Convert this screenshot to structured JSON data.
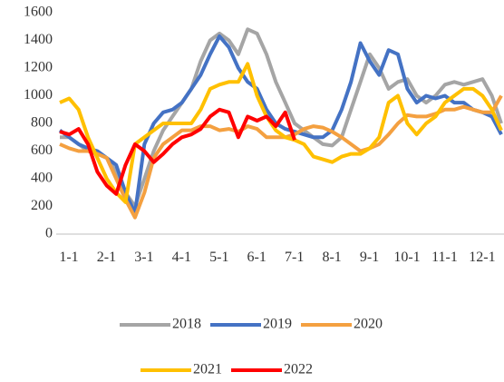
{
  "chart_data": {
    "type": "line",
    "categories": [
      "1-1",
      null,
      null,
      null,
      "2-1",
      null,
      null,
      null,
      "3-1",
      null,
      null,
      null,
      "4-1",
      null,
      null,
      null,
      "5-1",
      null,
      null,
      null,
      "6-1",
      null,
      null,
      null,
      "7-1",
      null,
      null,
      null,
      "8-1",
      null,
      null,
      null,
      "9-1",
      null,
      null,
      null,
      "10-1",
      null,
      null,
      null,
      "11-1",
      null,
      null,
      null,
      "12-1",
      null,
      null,
      null
    ],
    "series": [
      {
        "name": "2018",
        "color": "#a5a5a5",
        "values": [
          700,
          700,
          650,
          600,
          580,
          550,
          450,
          300,
          200,
          400,
          600,
          750,
          850,
          950,
          1050,
          1250,
          1400,
          1450,
          1400,
          1300,
          1480,
          1450,
          1300,
          1100,
          950,
          800,
          750,
          700,
          650,
          640,
          700,
          900,
          1100,
          1300,
          1200,
          1050,
          1100,
          1120,
          1000,
          950,
          1000,
          1080,
          1100,
          1080,
          1100,
          1120,
          1000,
          800
        ]
      },
      {
        "name": "2019",
        "color": "#4472c4",
        "values": [
          750,
          700,
          650,
          620,
          600,
          550,
          500,
          300,
          150,
          650,
          800,
          880,
          900,
          950,
          1050,
          1150,
          1300,
          1430,
          1350,
          1200,
          1100,
          1050,
          900,
          800,
          760,
          740,
          720,
          700,
          700,
          750,
          900,
          1100,
          1380,
          1250,
          1150,
          1330,
          1300,
          1050,
          950,
          1000,
          980,
          1000,
          950,
          950,
          900,
          880,
          850,
          720
        ]
      },
      {
        "name": "2020",
        "color": "#f4a040",
        "values": [
          650,
          620,
          600,
          600,
          580,
          550,
          400,
          250,
          120,
          300,
          550,
          650,
          700,
          750,
          750,
          780,
          780,
          750,
          760,
          740,
          780,
          760,
          700,
          700,
          700,
          720,
          760,
          780,
          770,
          740,
          700,
          650,
          600,
          620,
          650,
          720,
          800,
          860,
          850,
          850,
          870,
          900,
          900,
          920,
          900,
          880,
          880,
          1000
        ]
      },
      {
        "name": "2021",
        "color": "#ffc000",
        "values": [
          950,
          980,
          900,
          700,
          550,
          400,
          300,
          230,
          650,
          700,
          750,
          800,
          800,
          800,
          800,
          900,
          1050,
          1080,
          1100,
          1100,
          1230,
          1000,
          850,
          750,
          700,
          680,
          650,
          560,
          540,
          520,
          560,
          580,
          580,
          620,
          700,
          950,
          1000,
          800,
          720,
          800,
          850,
          950,
          1000,
          1050,
          1050,
          1000,
          900,
          750
        ]
      },
      {
        "name": "2022",
        "color": "#ff0000",
        "values": [
          740,
          720,
          760,
          650,
          450,
          350,
          290,
          500,
          650,
          600,
          520,
          580,
          650,
          700,
          720,
          760,
          850,
          900,
          880,
          700,
          850,
          820,
          850,
          780,
          880,
          680,
          null,
          null,
          null,
          null,
          null,
          null,
          null,
          null,
          null,
          null,
          null,
          null,
          null,
          null,
          null,
          null,
          null,
          null,
          null,
          null,
          null,
          null
        ]
      }
    ],
    "ylim": [
      0,
      1600
    ],
    "yticks": [
      0,
      200,
      400,
      600,
      800,
      1000,
      1200,
      1400,
      1600
    ],
    "grid": false
  }
}
